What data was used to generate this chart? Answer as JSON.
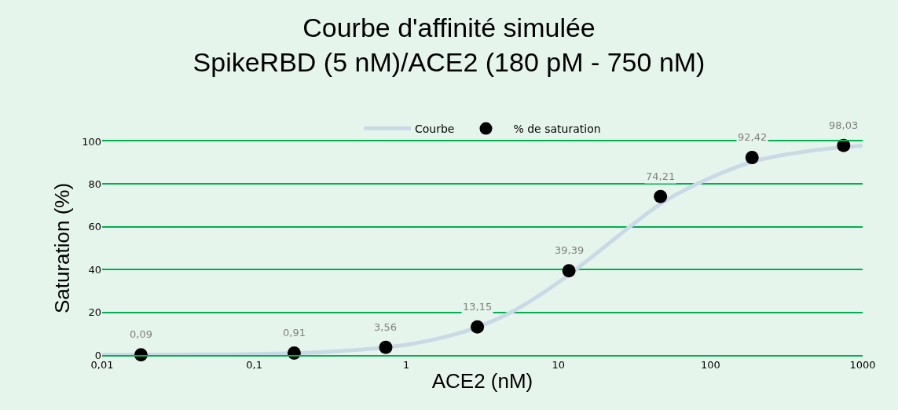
{
  "chart_data": {
    "type": "scatter",
    "title": "Courbe d'affinité simulée",
    "subtitle": "SpikeRBD (5 nM)/ACE2 (180 pM - 750 nM)",
    "xlabel": "ACE2 (nM)",
    "ylabel": "Saturation (%)",
    "log": "x",
    "xlim": [
      0.01,
      1000
    ],
    "xticks": [
      {
        "value": 0.01,
        "label": "0,01"
      },
      {
        "value": 0.1,
        "label": "0,1"
      },
      1,
      10,
      100,
      1000
    ],
    "ylim": [
      0,
      100
    ],
    "yticks": [
      0,
      20,
      40,
      60,
      80,
      100
    ],
    "grid": "y",
    "legend": "top",
    "series": [
      {
        "name": "Courbe",
        "type": "line",
        "color": "#c9dae6",
        "marker": "none",
        "x": [
          0.01,
          0.03,
          0.1,
          0.3,
          1,
          2,
          3,
          5,
          10,
          20,
          30,
          50,
          100,
          200,
          500,
          1000
        ],
        "values": [
          0.1,
          0.2,
          0.5,
          1.5,
          4.8,
          9.3,
          13.3,
          20.4,
          34,
          50.5,
          60.5,
          72,
          83,
          91,
          96,
          98
        ]
      },
      {
        "name": "% de saturation",
        "color": "#000000",
        "marker": "circle",
        "x": [
          0.018,
          0.183,
          0.732,
          2.93,
          11.72,
          46.88,
          187.5,
          750
        ],
        "values": [
          0.09,
          0.91,
          3.56,
          13.15,
          39.39,
          74.21,
          92.42,
          98.03
        ],
        "value_labels": [
          "0,09",
          "0,91",
          "3,56",
          "13,15",
          "39,39",
          "74,21",
          "92,42",
          "98,03"
        ]
      }
    ]
  }
}
